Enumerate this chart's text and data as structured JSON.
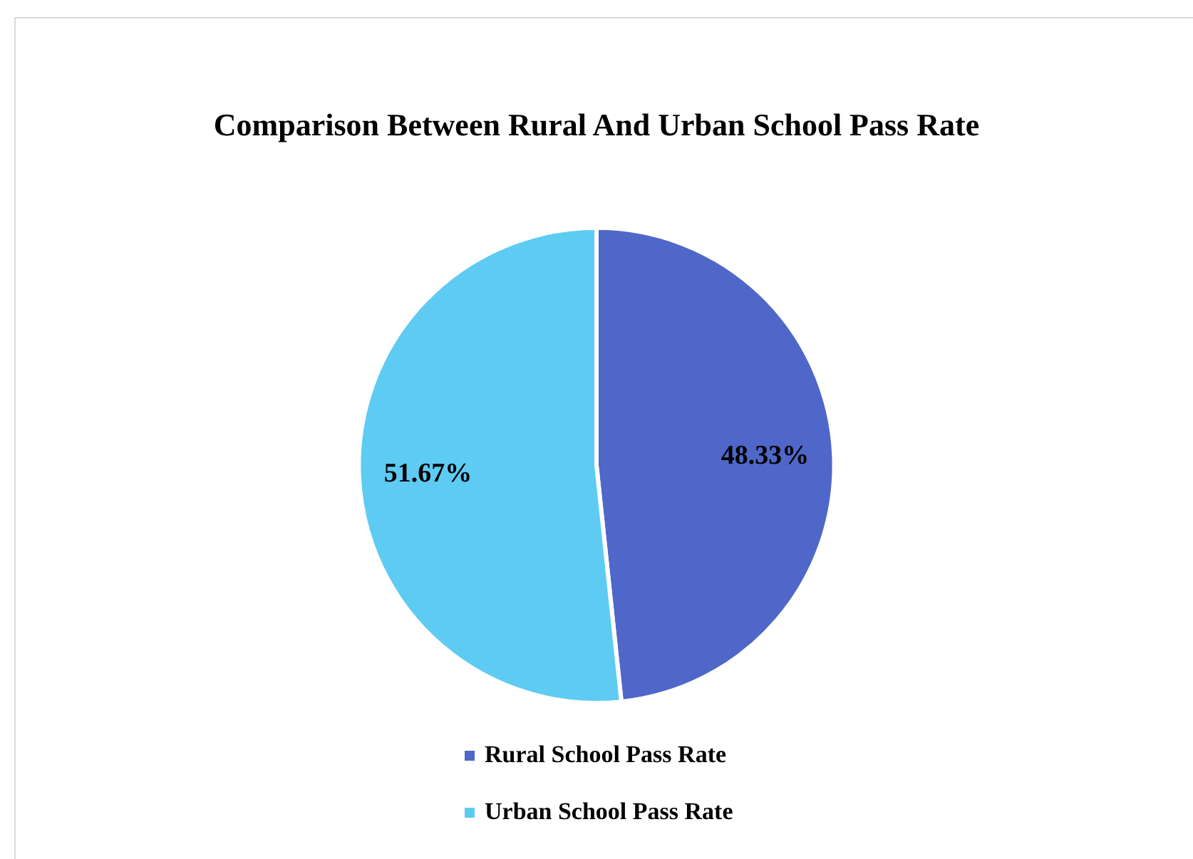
{
  "chart_data": {
    "type": "pie",
    "title": "Comparison Between Rural And Urban School Pass Rate",
    "categories": [
      "Rural School Pass Rate",
      "Urban School Pass Rate"
    ],
    "values": [
      48.33,
      51.67
    ],
    "colors": [
      "#4f67c8",
      "#5ecbf3"
    ],
    "value_labels": [
      "48.33%",
      "51.67%"
    ],
    "legend": "bottom"
  }
}
